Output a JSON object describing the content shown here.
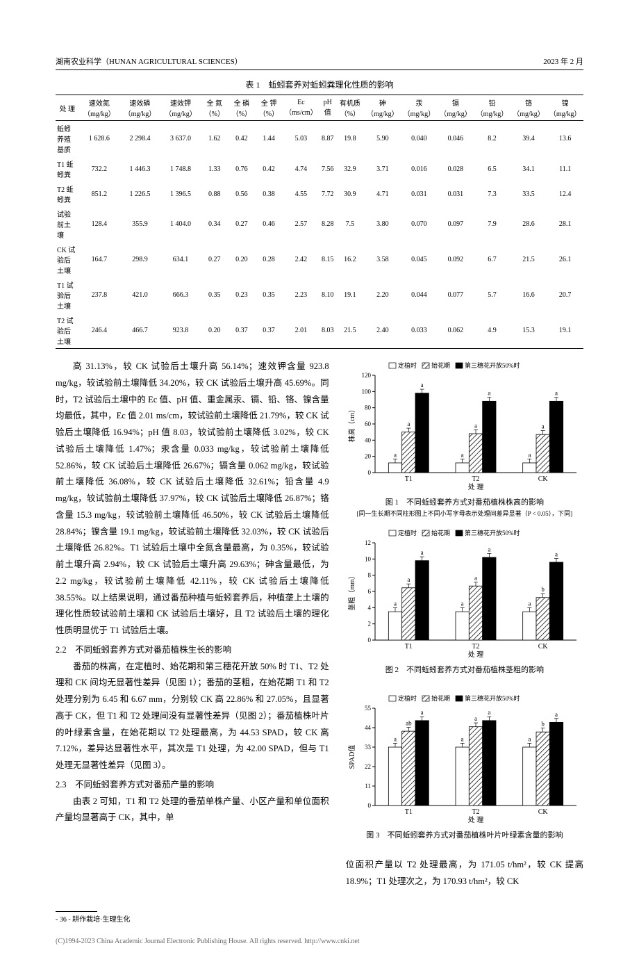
{
  "header": {
    "journal": "湖南农业科学（HUNAN AGRICULTURAL SCIENCES）",
    "date": "2023 年 2 月"
  },
  "table1": {
    "title": "表 1　蚯蚓套养对蚯蚓粪理化性质的影响",
    "columns": [
      "处 理",
      "速效氮（mg/kg）",
      "速效磷（mg/kg）",
      "速效钾（mg/kg）",
      "全 氮（%）",
      "全 磷（%）",
      "全 钾（%）",
      "Ec（ms/cm）",
      "pH值",
      "有机质（%）",
      "砷（mg/kg）",
      "汞（mg/kg）",
      "镉（mg/kg）",
      "铅（mg/kg）",
      "铬（mg/kg）",
      "镍（mg/kg）"
    ],
    "rows": [
      [
        "蚯蚓养殖基质",
        "1 628.6",
        "2 298.4",
        "3 637.0",
        "1.62",
        "0.42",
        "1.44",
        "5.03",
        "8.87",
        "19.8",
        "5.90",
        "0.040",
        "0.046",
        "8.2",
        "39.4",
        "13.6"
      ],
      [
        "T1 蚯蚓粪",
        "732.2",
        "1 446.3",
        "1 748.8",
        "1.33",
        "0.76",
        "0.42",
        "4.74",
        "7.56",
        "32.9",
        "3.71",
        "0.016",
        "0.028",
        "6.5",
        "34.1",
        "11.1"
      ],
      [
        "T2 蚯蚓粪",
        "851.2",
        "1 226.5",
        "1 396.5",
        "0.88",
        "0.56",
        "0.38",
        "4.55",
        "7.72",
        "30.9",
        "4.71",
        "0.031",
        "0.031",
        "7.3",
        "33.5",
        "12.4"
      ],
      [
        "试验前土壤",
        "128.4",
        "355.9",
        "1 404.0",
        "0.34",
        "0.27",
        "0.46",
        "2.57",
        "8.28",
        "7.5",
        "3.80",
        "0.070",
        "0.097",
        "7.9",
        "28.6",
        "28.1"
      ],
      [
        "CK 试验后土壤",
        "164.7",
        "298.9",
        "634.1",
        "0.27",
        "0.20",
        "0.28",
        "2.42",
        "8.15",
        "16.2",
        "3.58",
        "0.045",
        "0.092",
        "6.7",
        "21.5",
        "26.1"
      ],
      [
        "T1 试验后土壤",
        "237.8",
        "421.0",
        "666.3",
        "0.35",
        "0.23",
        "0.35",
        "2.23",
        "8.10",
        "19.1",
        "2.20",
        "0.044",
        "0.077",
        "5.7",
        "16.6",
        "20.7"
      ],
      [
        "T2 试验后土壤",
        "246.4",
        "466.7",
        "923.8",
        "0.20",
        "0.37",
        "0.37",
        "2.01",
        "8.03",
        "21.5",
        "2.40",
        "0.033",
        "0.062",
        "4.9",
        "15.3",
        "19.1"
      ]
    ]
  },
  "body": {
    "p1": "高 31.13%，较 CK 试验后土壤升高 56.14%；速效钾含量 923.8 mg/kg，较试验前土壤降低 34.20%，较 CK 试验后土壤升高 45.69%。同时，T2 试验后土壤中的 Ec 值、pH 值、重金属汞、镉、铅、铬、镍含量均最低，其中，Ec 值 2.01 ms/cm，较试验前土壤降低 21.79%，较 CK 试验后土壤降低 16.94%；pH 值 8.03，较试验前土壤降低 3.02%，较 CK 试验后土壤降低 1.47%；汞含量 0.033 mg/kg，较试验前土壤降低 52.86%，较 CK 试验后土壤降低 26.67%；镉含量 0.062 mg/kg，较试验前土壤降低 36.08%，较 CK 试验后土壤降低 32.61%；铅含量 4.9 mg/kg，较试验前土壤降低 37.97%，较 CK 试验后土壤降低 26.87%；铬含量 15.3 mg/kg，较试验前土壤降低 46.50%，较 CK 试验后土壤降低 28.84%；镍含量 19.1 mg/kg，较试验前土壤降低 32.03%，较 CK 试验后土壤降低 26.82%。T1 试验后土壤中全氮含量最高，为 0.35%，较试验前土壤升高 2.94%，较 CK 试验后土壤升高 29.63%；砷含量最低，为 2.2 mg/kg，较试验前土壤降低 42.11%，较 CK 试验后土壤降低 38.55%。以上结果说明，通过番茄种植与蚯蚓套养后，种植垄上土壤的理化性质较试验前土壤和 CK 试验后土壤好，且 T2 试验后土壤的理化性质明显优于 T1 试验后土壤。",
    "h22": "2.2　不同蚯蚓套养方式对番茄植株生长的影响",
    "p2": "番茄的株高，在定植时、始花期和第三穗花开放 50% 时 T1、T2 处理和 CK 间均无显著性差异（见图 1）；番茄的茎粗，在始花期 T1 和 T2 处理分别为 6.45 和 6.67 mm，分别较 CK 高 22.86% 和 27.05%，且显著高于 CK，但 T1 和 T2 处理间没有显著性差异（见图 2）；番茄植株叶片的叶绿素含量，在始花期以 T2 处理最高，为 44.53 SPAD，较 CK 高 7.12%，差异达显著性水平，其次是 T1 处理，为 42.00 SPAD，但与 T1 处理无显著性差异（见图 3）。",
    "h23": "2.3　不同蚯蚓套养方式对番茄产量的影响",
    "p3": "由表 2 可知，T1 和 T2 处理的番茄单株产量、小区产量和单位面积产量均显著高于 CK，其中，单",
    "p4r": "位面积产量以 T2 处理最高，为 171.05 t/hm²，较 CK 提高 18.9%；T1 处理次之，为 170.93 t/hm²，较 CK"
  },
  "charts": {
    "legend_items": [
      "定植时",
      "始花期",
      "第三穗花开放50%时"
    ],
    "categories": [
      "T1",
      "T2",
      "CK"
    ],
    "xlabel": "处 理",
    "colors": {
      "white": "#ffffff",
      "hatch": "#000000",
      "black": "#000000",
      "axis": "#000000",
      "bg": "#ffffff"
    },
    "fig1": {
      "caption": "图 1　不同蚯蚓套养方式对番茄植株株高的影响",
      "note": "[同一生长期不同柱形图上不同小写字母表示处理间差异显著（P < 0.05），下同]",
      "ylabel": "株高（cm）",
      "ylim": [
        0,
        120
      ],
      "ytick": 20,
      "series": [
        {
          "name": "定植时",
          "vals": [
            12,
            12,
            12
          ],
          "labels": [
            "a",
            "a",
            "a"
          ]
        },
        {
          "name": "始花期",
          "vals": [
            50,
            48,
            47
          ],
          "labels": [
            "a",
            "a",
            "a"
          ]
        },
        {
          "name": "第三穗花开放50%时",
          "vals": [
            98,
            88,
            88
          ],
          "labels": [
            "a",
            "a",
            "a"
          ]
        }
      ]
    },
    "fig2": {
      "caption": "图 2　不同蚯蚓套养方式对番茄植株茎粗的影响",
      "ylabel": "茎粗（mm）",
      "ylim": [
        0,
        12
      ],
      "ytick": 2,
      "series": [
        {
          "name": "定植时",
          "vals": [
            3.5,
            3.5,
            3.5
          ],
          "labels": [
            "a",
            "a",
            "a"
          ]
        },
        {
          "name": "始花期",
          "vals": [
            6.45,
            6.67,
            5.25
          ],
          "labels": [
            "a",
            "a",
            "b"
          ]
        },
        {
          "name": "第三穗花开放50%时",
          "vals": [
            9.8,
            10.2,
            9.6
          ],
          "labels": [
            "a",
            "a",
            "a"
          ]
        }
      ]
    },
    "fig3": {
      "caption": "图 3　不同蚯蚓套养方式对番茄植株叶片叶绿素含量的影响",
      "ylabel": "SPAD值",
      "ylim": [
        0,
        55
      ],
      "ytick": 11,
      "series": [
        {
          "name": "定植时",
          "vals": [
            33,
            33,
            33
          ],
          "labels": [
            "a",
            "a",
            "a"
          ]
        },
        {
          "name": "始花期",
          "vals": [
            42,
            44.53,
            41.57
          ],
          "labels": [
            "ab",
            "a",
            "b"
          ]
        },
        {
          "name": "第三穗花开放50%时",
          "vals": [
            48,
            48,
            47
          ],
          "labels": [
            "a",
            "a",
            "a"
          ]
        }
      ]
    }
  },
  "footer": {
    "pagenum": "- 36 -",
    "section": "耕作栽培·生理生化",
    "copyright": "(C)1994-2023 China Academic Journal Electronic Publishing House. All rights reserved.    http://www.cnki.net"
  }
}
